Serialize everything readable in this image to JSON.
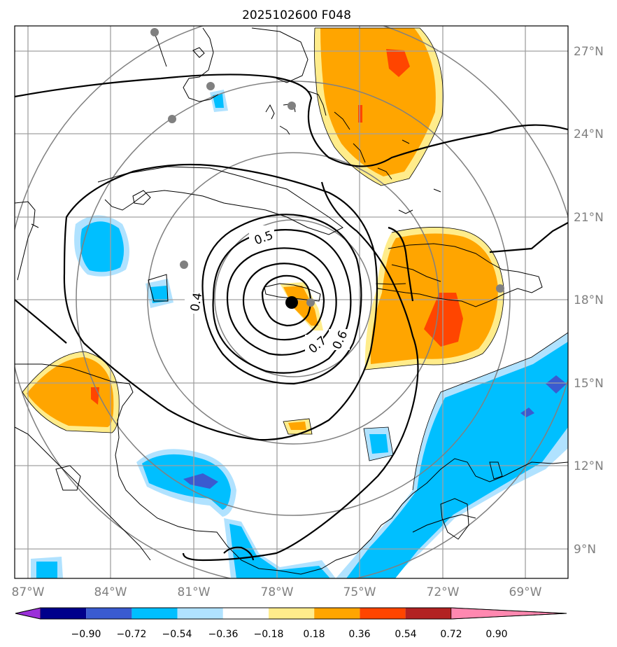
{
  "title": "2025102600 F048",
  "longitude_ticks": [
    "87°W",
    "84°W",
    "81°W",
    "78°W",
    "75°W",
    "72°W",
    "69°W"
  ],
  "latitude_ticks": [
    "27°N",
    "24°N",
    "21°N",
    "18°N",
    "15°N",
    "12°N",
    "9°N"
  ],
  "colorbar": {
    "tick_labels": [
      "−0.90",
      "−0.72",
      "−0.54",
      "−0.36",
      "−0.18",
      "0.18",
      "0.36",
      "0.54",
      "0.72",
      "0.90"
    ],
    "colors": [
      "#9b30d9",
      "#00008b",
      "#3a5bd0",
      "#00bfff",
      "#b0e2ff",
      "#ffffff",
      "#ffec8b",
      "#ffa500",
      "#ff4500",
      "#b22222",
      "#ff88b0"
    ]
  },
  "contour_labels": [
    "0.4",
    "0.5",
    "0.6",
    "0.7"
  ],
  "storm_center": {
    "lon": -77.3,
    "lat": 17.9
  },
  "colors": {
    "grid": "#a0a0a0",
    "range_rings": "#808080",
    "contours": "#000000",
    "coast": "#000000",
    "stations": "#808080"
  }
}
